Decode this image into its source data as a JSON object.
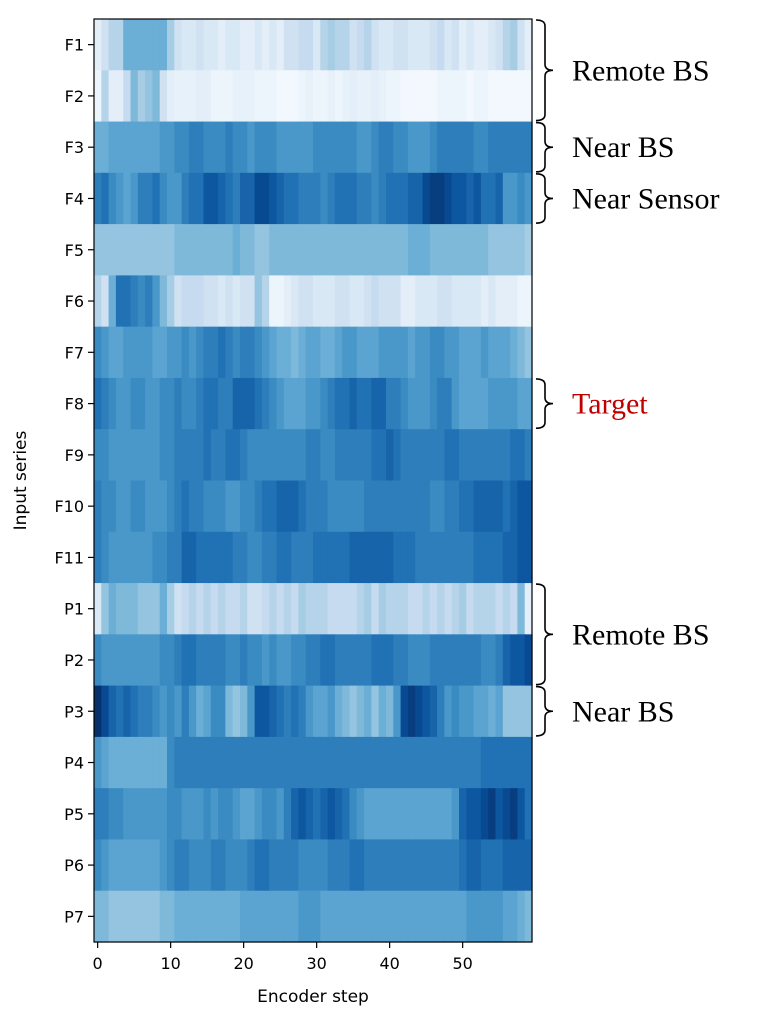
{
  "chart_data": {
    "type": "heatmap",
    "title": "",
    "xlabel": "Encoder step",
    "ylabel": "Input series",
    "xlim": [
      0,
      60
    ],
    "x_ticks": [
      0,
      10,
      20,
      30,
      40,
      50
    ],
    "colormap": "Blues",
    "rows": [
      "F1",
      "F2",
      "F3",
      "F4",
      "F5",
      "F6",
      "F7",
      "F8",
      "F9",
      "F10",
      "F11",
      "P1",
      "P2",
      "P3",
      "P4",
      "P5",
      "P6",
      "P7"
    ],
    "values": [
      [
        0.1,
        0.2,
        0.3,
        0.3,
        0.5,
        0.5,
        0.5,
        0.5,
        0.5,
        0.5,
        0.35,
        0.2,
        0.15,
        0.15,
        0.2,
        0.15,
        0.15,
        0.1,
        0.15,
        0.15,
        0.1,
        0.1,
        0.15,
        0.1,
        0.15,
        0.1,
        0.2,
        0.2,
        0.25,
        0.25,
        0.15,
        0.3,
        0.35,
        0.3,
        0.3,
        0.2,
        0.25,
        0.3,
        0.2,
        0.15,
        0.15,
        0.2,
        0.2,
        0.15,
        0.15,
        0.15,
        0.2,
        0.25,
        0.15,
        0.2,
        0.1,
        0.15,
        0.1,
        0.1,
        0.15,
        0.2,
        0.3,
        0.35,
        0.2,
        0.1
      ],
      [
        0.05,
        0.3,
        0.1,
        0.1,
        0.25,
        0.45,
        0.35,
        0.4,
        0.45,
        0.2,
        0.1,
        0.08,
        0.08,
        0.08,
        0.1,
        0.1,
        0.05,
        0.05,
        0.05,
        0.08,
        0.08,
        0.08,
        0.05,
        0.05,
        0.05,
        0.02,
        0.02,
        0.02,
        0.05,
        0.08,
        0.05,
        0.05,
        0.08,
        0.05,
        0.08,
        0.1,
        0.08,
        0.08,
        0.1,
        0.08,
        0.05,
        0.05,
        0.02,
        0.02,
        0.02,
        0.02,
        0.02,
        0.05,
        0.05,
        0.05,
        0.05,
        0.02,
        0.05,
        0.05,
        0.02,
        0.02,
        0.02,
        0.02,
        0.02,
        0.02
      ],
      [
        0.5,
        0.5,
        0.55,
        0.55,
        0.55,
        0.55,
        0.55,
        0.55,
        0.55,
        0.6,
        0.6,
        0.65,
        0.65,
        0.7,
        0.7,
        0.65,
        0.65,
        0.65,
        0.7,
        0.65,
        0.65,
        0.6,
        0.65,
        0.65,
        0.65,
        0.6,
        0.6,
        0.6,
        0.6,
        0.6,
        0.65,
        0.65,
        0.65,
        0.65,
        0.65,
        0.65,
        0.6,
        0.6,
        0.65,
        0.7,
        0.7,
        0.65,
        0.65,
        0.6,
        0.6,
        0.6,
        0.65,
        0.7,
        0.7,
        0.7,
        0.7,
        0.7,
        0.65,
        0.65,
        0.7,
        0.7,
        0.7,
        0.7,
        0.7,
        0.7
      ],
      [
        0.7,
        0.75,
        0.65,
        0.6,
        0.55,
        0.6,
        0.7,
        0.7,
        0.75,
        0.65,
        0.6,
        0.6,
        0.7,
        0.75,
        0.75,
        0.85,
        0.85,
        0.8,
        0.75,
        0.7,
        0.8,
        0.8,
        0.9,
        0.9,
        0.85,
        0.8,
        0.75,
        0.75,
        0.7,
        0.7,
        0.7,
        0.65,
        0.7,
        0.75,
        0.75,
        0.75,
        0.7,
        0.7,
        0.65,
        0.7,
        0.75,
        0.75,
        0.75,
        0.8,
        0.8,
        0.9,
        0.95,
        0.95,
        0.9,
        0.85,
        0.85,
        0.8,
        0.85,
        0.75,
        0.75,
        0.8,
        0.6,
        0.6,
        0.65,
        0.6
      ],
      [
        0.4,
        0.4,
        0.4,
        0.4,
        0.4,
        0.4,
        0.4,
        0.4,
        0.4,
        0.4,
        0.4,
        0.45,
        0.45,
        0.45,
        0.45,
        0.45,
        0.45,
        0.45,
        0.45,
        0.5,
        0.45,
        0.45,
        0.4,
        0.4,
        0.45,
        0.45,
        0.45,
        0.45,
        0.45,
        0.45,
        0.45,
        0.45,
        0.45,
        0.45,
        0.45,
        0.45,
        0.45,
        0.45,
        0.45,
        0.45,
        0.45,
        0.45,
        0.45,
        0.5,
        0.5,
        0.5,
        0.45,
        0.45,
        0.45,
        0.45,
        0.45,
        0.45,
        0.45,
        0.45,
        0.4,
        0.4,
        0.4,
        0.4,
        0.4,
        0.35
      ],
      [
        0.3,
        0.2,
        0.5,
        0.75,
        0.75,
        0.7,
        0.65,
        0.7,
        0.6,
        0.45,
        0.35,
        0.2,
        0.25,
        0.25,
        0.25,
        0.2,
        0.2,
        0.15,
        0.2,
        0.15,
        0.2,
        0.2,
        0.4,
        0.3,
        0.05,
        0.05,
        0.1,
        0.15,
        0.2,
        0.2,
        0.15,
        0.15,
        0.15,
        0.2,
        0.2,
        0.15,
        0.15,
        0.2,
        0.25,
        0.2,
        0.2,
        0.2,
        0.1,
        0.1,
        0.15,
        0.15,
        0.15,
        0.2,
        0.2,
        0.15,
        0.15,
        0.15,
        0.15,
        0.1,
        0.15,
        0.1,
        0.1,
        0.1,
        0.05,
        0.05
      ],
      [
        0.65,
        0.6,
        0.55,
        0.55,
        0.6,
        0.6,
        0.6,
        0.6,
        0.55,
        0.55,
        0.6,
        0.6,
        0.65,
        0.6,
        0.65,
        0.7,
        0.7,
        0.75,
        0.7,
        0.65,
        0.7,
        0.7,
        0.65,
        0.6,
        0.55,
        0.5,
        0.5,
        0.45,
        0.5,
        0.55,
        0.55,
        0.5,
        0.5,
        0.55,
        0.6,
        0.6,
        0.55,
        0.55,
        0.55,
        0.6,
        0.6,
        0.6,
        0.6,
        0.55,
        0.6,
        0.6,
        0.65,
        0.65,
        0.6,
        0.6,
        0.55,
        0.55,
        0.55,
        0.6,
        0.55,
        0.55,
        0.55,
        0.5,
        0.45,
        0.4
      ],
      [
        0.75,
        0.7,
        0.65,
        0.6,
        0.6,
        0.65,
        0.65,
        0.6,
        0.6,
        0.65,
        0.65,
        0.7,
        0.65,
        0.65,
        0.7,
        0.75,
        0.75,
        0.7,
        0.7,
        0.8,
        0.8,
        0.8,
        0.75,
        0.7,
        0.65,
        0.6,
        0.55,
        0.55,
        0.55,
        0.6,
        0.6,
        0.65,
        0.7,
        0.75,
        0.75,
        0.8,
        0.75,
        0.75,
        0.8,
        0.8,
        0.7,
        0.7,
        0.65,
        0.6,
        0.6,
        0.6,
        0.65,
        0.7,
        0.7,
        0.6,
        0.55,
        0.55,
        0.55,
        0.55,
        0.6,
        0.6,
        0.6,
        0.6,
        0.55,
        0.55
      ],
      [
        0.65,
        0.65,
        0.6,
        0.6,
        0.6,
        0.6,
        0.6,
        0.6,
        0.6,
        0.65,
        0.65,
        0.7,
        0.7,
        0.7,
        0.7,
        0.75,
        0.7,
        0.7,
        0.75,
        0.75,
        0.7,
        0.65,
        0.65,
        0.65,
        0.65,
        0.65,
        0.65,
        0.65,
        0.65,
        0.7,
        0.7,
        0.65,
        0.65,
        0.7,
        0.7,
        0.7,
        0.7,
        0.7,
        0.75,
        0.75,
        0.8,
        0.75,
        0.7,
        0.7,
        0.7,
        0.7,
        0.7,
        0.7,
        0.75,
        0.75,
        0.7,
        0.7,
        0.7,
        0.7,
        0.7,
        0.7,
        0.7,
        0.75,
        0.75,
        0.7
      ],
      [
        0.7,
        0.65,
        0.65,
        0.6,
        0.6,
        0.65,
        0.65,
        0.6,
        0.6,
        0.6,
        0.65,
        0.7,
        0.75,
        0.7,
        0.7,
        0.65,
        0.65,
        0.65,
        0.6,
        0.6,
        0.65,
        0.65,
        0.7,
        0.75,
        0.75,
        0.8,
        0.8,
        0.8,
        0.75,
        0.7,
        0.7,
        0.7,
        0.65,
        0.65,
        0.65,
        0.65,
        0.65,
        0.7,
        0.7,
        0.7,
        0.7,
        0.7,
        0.7,
        0.7,
        0.7,
        0.7,
        0.65,
        0.65,
        0.7,
        0.7,
        0.75,
        0.75,
        0.8,
        0.8,
        0.8,
        0.8,
        0.75,
        0.8,
        0.85,
        0.85
      ],
      [
        0.7,
        0.65,
        0.6,
        0.6,
        0.6,
        0.6,
        0.6,
        0.6,
        0.65,
        0.65,
        0.7,
        0.7,
        0.8,
        0.8,
        0.75,
        0.75,
        0.75,
        0.75,
        0.75,
        0.7,
        0.7,
        0.65,
        0.65,
        0.7,
        0.7,
        0.75,
        0.75,
        0.7,
        0.7,
        0.7,
        0.75,
        0.75,
        0.75,
        0.75,
        0.75,
        0.8,
        0.8,
        0.8,
        0.8,
        0.8,
        0.8,
        0.75,
        0.75,
        0.75,
        0.7,
        0.7,
        0.7,
        0.7,
        0.7,
        0.7,
        0.7,
        0.7,
        0.75,
        0.75,
        0.75,
        0.75,
        0.8,
        0.8,
        0.85,
        0.85
      ],
      [
        0.15,
        0.4,
        0.5,
        0.45,
        0.45,
        0.45,
        0.4,
        0.4,
        0.4,
        0.5,
        0.35,
        0.2,
        0.25,
        0.3,
        0.25,
        0.3,
        0.25,
        0.3,
        0.25,
        0.25,
        0.3,
        0.2,
        0.2,
        0.25,
        0.3,
        0.25,
        0.3,
        0.25,
        0.35,
        0.3,
        0.3,
        0.3,
        0.25,
        0.25,
        0.25,
        0.25,
        0.3,
        0.35,
        0.25,
        0.35,
        0.3,
        0.3,
        0.3,
        0.25,
        0.25,
        0.3,
        0.25,
        0.3,
        0.25,
        0.3,
        0.35,
        0.25,
        0.3,
        0.3,
        0.3,
        0.25,
        0.3,
        0.25,
        0.45,
        0.1
      ],
      [
        0.65,
        0.6,
        0.6,
        0.6,
        0.6,
        0.6,
        0.6,
        0.6,
        0.6,
        0.65,
        0.65,
        0.7,
        0.75,
        0.75,
        0.7,
        0.7,
        0.7,
        0.7,
        0.65,
        0.65,
        0.7,
        0.65,
        0.65,
        0.6,
        0.65,
        0.6,
        0.6,
        0.65,
        0.65,
        0.7,
        0.7,
        0.75,
        0.75,
        0.7,
        0.7,
        0.7,
        0.7,
        0.7,
        0.75,
        0.75,
        0.75,
        0.7,
        0.7,
        0.65,
        0.65,
        0.65,
        0.7,
        0.7,
        0.7,
        0.7,
        0.7,
        0.7,
        0.7,
        0.65,
        0.65,
        0.7,
        0.8,
        0.85,
        0.85,
        0.9
      ],
      [
        1.0,
        0.9,
        0.8,
        0.75,
        0.8,
        0.75,
        0.7,
        0.7,
        0.65,
        0.6,
        0.65,
        0.6,
        0.7,
        0.6,
        0.5,
        0.55,
        0.65,
        0.65,
        0.45,
        0.4,
        0.45,
        0.6,
        0.85,
        0.85,
        0.8,
        0.75,
        0.7,
        0.75,
        0.7,
        0.6,
        0.55,
        0.55,
        0.6,
        0.5,
        0.45,
        0.4,
        0.45,
        0.5,
        0.4,
        0.5,
        0.45,
        0.6,
        0.9,
        0.95,
        0.9,
        0.85,
        0.8,
        0.7,
        0.6,
        0.65,
        0.6,
        0.6,
        0.55,
        0.55,
        0.5,
        0.55,
        0.4,
        0.4,
        0.4,
        0.4
      ],
      [
        0.6,
        0.55,
        0.5,
        0.5,
        0.5,
        0.5,
        0.5,
        0.5,
        0.5,
        0.5,
        0.65,
        0.7,
        0.7,
        0.7,
        0.7,
        0.7,
        0.7,
        0.7,
        0.7,
        0.7,
        0.7,
        0.7,
        0.7,
        0.7,
        0.7,
        0.7,
        0.7,
        0.7,
        0.7,
        0.7,
        0.7,
        0.7,
        0.7,
        0.7,
        0.7,
        0.7,
        0.7,
        0.7,
        0.7,
        0.7,
        0.7,
        0.7,
        0.7,
        0.7,
        0.7,
        0.7,
        0.7,
        0.7,
        0.7,
        0.7,
        0.7,
        0.7,
        0.7,
        0.75,
        0.75,
        0.75,
        0.75,
        0.75,
        0.75,
        0.75
      ],
      [
        0.7,
        0.7,
        0.65,
        0.65,
        0.6,
        0.6,
        0.6,
        0.6,
        0.6,
        0.6,
        0.65,
        0.65,
        0.6,
        0.6,
        0.6,
        0.65,
        0.6,
        0.65,
        0.65,
        0.6,
        0.55,
        0.55,
        0.6,
        0.65,
        0.65,
        0.6,
        0.7,
        0.8,
        0.85,
        0.8,
        0.75,
        0.8,
        0.85,
        0.8,
        0.75,
        0.65,
        0.6,
        0.55,
        0.55,
        0.55,
        0.55,
        0.55,
        0.55,
        0.55,
        0.55,
        0.55,
        0.55,
        0.55,
        0.55,
        0.6,
        0.8,
        0.85,
        0.85,
        0.9,
        0.95,
        0.85,
        0.9,
        0.95,
        0.85,
        0.75
      ],
      [
        0.65,
        0.6,
        0.55,
        0.55,
        0.55,
        0.55,
        0.55,
        0.55,
        0.55,
        0.6,
        0.65,
        0.7,
        0.7,
        0.65,
        0.65,
        0.65,
        0.7,
        0.7,
        0.65,
        0.65,
        0.65,
        0.7,
        0.75,
        0.75,
        0.7,
        0.7,
        0.7,
        0.7,
        0.65,
        0.65,
        0.65,
        0.65,
        0.7,
        0.7,
        0.7,
        0.75,
        0.75,
        0.7,
        0.7,
        0.7,
        0.7,
        0.7,
        0.7,
        0.7,
        0.7,
        0.7,
        0.7,
        0.7,
        0.7,
        0.7,
        0.75,
        0.8,
        0.8,
        0.75,
        0.75,
        0.75,
        0.8,
        0.8,
        0.8,
        0.8
      ],
      [
        0.45,
        0.45,
        0.4,
        0.4,
        0.4,
        0.4,
        0.4,
        0.4,
        0.4,
        0.45,
        0.45,
        0.5,
        0.5,
        0.5,
        0.5,
        0.5,
        0.5,
        0.5,
        0.5,
        0.5,
        0.55,
        0.55,
        0.55,
        0.55,
        0.55,
        0.55,
        0.55,
        0.55,
        0.6,
        0.6,
        0.6,
        0.55,
        0.55,
        0.55,
        0.55,
        0.55,
        0.55,
        0.55,
        0.55,
        0.55,
        0.55,
        0.55,
        0.55,
        0.55,
        0.55,
        0.55,
        0.55,
        0.55,
        0.55,
        0.55,
        0.55,
        0.6,
        0.6,
        0.6,
        0.6,
        0.6,
        0.55,
        0.55,
        0.5,
        0.45
      ]
    ],
    "annotations": [
      {
        "text": "Remote BS",
        "rows": [
          "F1",
          "F2"
        ],
        "color": "#000000"
      },
      {
        "text": "Near BS",
        "rows": [
          "F3"
        ],
        "color": "#000000"
      },
      {
        "text": "Near Sensor",
        "rows": [
          "F4"
        ],
        "color": "#000000"
      },
      {
        "text": "Target",
        "rows": [
          "F8"
        ],
        "color": "#c00000"
      },
      {
        "text": "Remote BS",
        "rows": [
          "P1",
          "P2"
        ],
        "color": "#000000"
      },
      {
        "text": "Near BS",
        "rows": [
          "P3"
        ],
        "color": "#000000"
      }
    ]
  }
}
